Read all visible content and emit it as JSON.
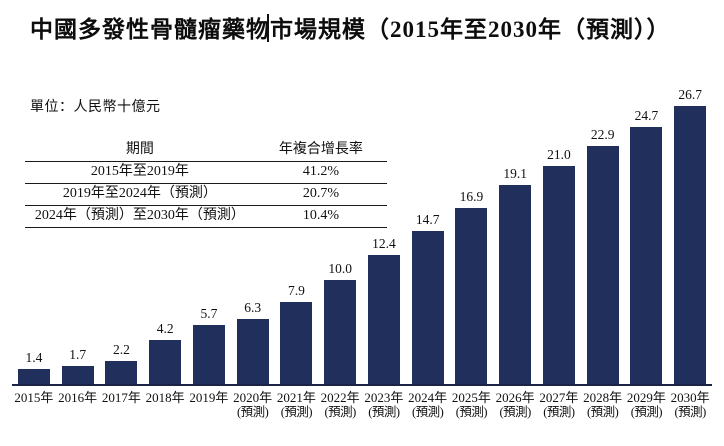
{
  "title": "中國多發性骨髓瘤藥物市場規模（2015年至2030年（預測））",
  "unit_label": "單位：人民幣十億元",
  "cagr_table": {
    "headers": [
      "期間",
      "年複合增長率"
    ],
    "rows": [
      {
        "period": "2015年至2019年",
        "cagr": "41.2%"
      },
      {
        "period": "2019年至2024年（預測）",
        "cagr": "20.7%"
      },
      {
        "period": "2024年（預測）至2030年（預測）",
        "cagr": "10.4%"
      }
    ]
  },
  "chart_data": {
    "type": "bar",
    "title": "中國多發性骨髓瘤藥物市場規模（2015年至2030年（預測））",
    "unit": "人民幣十億元",
    "xlabel": "",
    "ylabel": "",
    "ylim": [
      0,
      28
    ],
    "grid": false,
    "legend": false,
    "bar_color": "#202F5C",
    "axis_color": "#1b2447",
    "categories": [
      "2015年",
      "2016年",
      "2017年",
      "2018年",
      "2019年",
      "2020年",
      "2021年",
      "2022年",
      "2023年",
      "2024年",
      "2025年",
      "2026年",
      "2027年",
      "2028年",
      "2029年",
      "2030年"
    ],
    "forecast_labels": [
      "",
      "",
      "",
      "",
      "",
      "(預測)",
      "(預測)",
      "(預測)",
      "(預測)",
      "(預測)",
      "(預測)",
      "(預測)",
      "(預測)",
      "(預測)",
      "(預測)",
      "(預測)"
    ],
    "values": [
      1.4,
      1.7,
      2.2,
      4.2,
      5.7,
      6.3,
      7.9,
      10.0,
      12.4,
      14.7,
      16.9,
      19.1,
      21.0,
      22.9,
      24.7,
      26.7
    ],
    "value_labels": [
      "1.4",
      "1.7",
      "2.2",
      "4.2",
      "5.7",
      "6.3",
      "7.9",
      "10.0",
      "12.4",
      "14.7",
      "16.9",
      "19.1",
      "21.0",
      "22.9",
      "24.7",
      "26.7"
    ]
  }
}
